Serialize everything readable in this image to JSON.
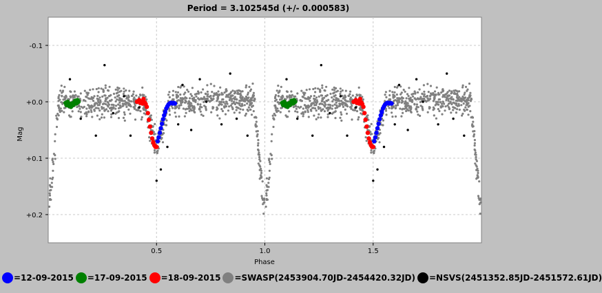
{
  "chart_data": {
    "type": "scatter",
    "title": "Period = 3.102545d (+/- 0.000583)",
    "xlabel": "Phase",
    "ylabel": "Mag",
    "xlim": [
      0.0,
      2.0
    ],
    "ylim": [
      0.25,
      -0.15
    ],
    "y_inverted": true,
    "grid": true,
    "x_ticks": [
      "0.5",
      "1.0",
      "1.5"
    ],
    "y_ticks": [
      "-0.1",
      "+0.0",
      "+0.1",
      "+0.2"
    ],
    "legend_position": "bottom",
    "series": [
      {
        "name": "=12-09-2015",
        "color": "#0000ff",
        "points": [
          [
            0.505,
            0.07
          ],
          [
            0.51,
            0.063
          ],
          [
            0.515,
            0.055
          ],
          [
            0.52,
            0.047
          ],
          [
            0.525,
            0.039
          ],
          [
            0.53,
            0.031
          ],
          [
            0.535,
            0.024
          ],
          [
            0.54,
            0.018
          ],
          [
            0.545,
            0.012
          ],
          [
            0.55,
            0.008
          ],
          [
            0.555,
            0.005
          ],
          [
            0.56,
            0.003
          ],
          [
            0.565,
            0.002
          ],
          [
            0.57,
            0.002
          ],
          [
            0.575,
            0.003
          ],
          [
            0.58,
            0.002
          ],
          [
            0.585,
            0.003
          ]
        ]
      },
      {
        "name": "=17-09-2015",
        "color": "#008000",
        "points": [
          [
            0.08,
            0.002
          ],
          [
            0.085,
            0.006
          ],
          [
            0.09,
            0.0
          ],
          [
            0.095,
            0.007
          ],
          [
            0.1,
            0.004
          ],
          [
            0.105,
            0.009
          ],
          [
            0.11,
            0.003
          ],
          [
            0.115,
            0.006
          ],
          [
            0.12,
            0.001
          ],
          [
            0.125,
            -0.002
          ],
          [
            0.13,
            0.003
          ],
          [
            0.135,
            -0.003
          ],
          [
            0.14,
            0.0
          ]
        ]
      },
      {
        "name": "=18-09-2015",
        "color": "#ff0000",
        "points": [
          [
            0.41,
            0.0
          ],
          [
            0.42,
            -0.003
          ],
          [
            0.425,
            0.002
          ],
          [
            0.43,
            0.0
          ],
          [
            0.435,
            0.003
          ],
          [
            0.44,
            -0.005
          ],
          [
            0.445,
            0.001
          ],
          [
            0.45,
            0.004
          ],
          [
            0.455,
            0.009
          ],
          [
            0.46,
            0.02
          ],
          [
            0.465,
            0.032
          ],
          [
            0.47,
            0.044
          ],
          [
            0.475,
            0.055
          ],
          [
            0.48,
            0.065
          ],
          [
            0.485,
            0.072
          ],
          [
            0.49,
            0.077
          ],
          [
            0.495,
            0.08
          ],
          [
            0.5,
            0.08
          ]
        ]
      },
      {
        "name": "=SWASP(2453904.70JD-2454420.32JD)",
        "color": "#808080",
        "generated": "baseline",
        "points": []
      },
      {
        "name": "=NSVS(2451352.85JD-2451572.61JD)",
        "color": "#000000",
        "points": [
          [
            0.1,
            -0.04
          ],
          [
            0.15,
            0.03
          ],
          [
            0.22,
            0.06
          ],
          [
            0.26,
            -0.065
          ],
          [
            0.3,
            0.02
          ],
          [
            0.35,
            -0.01
          ],
          [
            0.38,
            0.06
          ],
          [
            0.42,
            0.01
          ],
          [
            0.5,
            0.14
          ],
          [
            0.52,
            0.12
          ],
          [
            0.55,
            0.08
          ],
          [
            0.6,
            0.04
          ],
          [
            0.62,
            -0.03
          ],
          [
            0.66,
            0.05
          ],
          [
            0.7,
            -0.04
          ],
          [
            0.73,
            0.0
          ],
          [
            0.8,
            0.04
          ],
          [
            0.84,
            -0.05
          ],
          [
            0.87,
            0.03
          ],
          [
            0.92,
            0.06
          ]
        ]
      }
    ]
  },
  "legend": {
    "items": [
      {
        "label": "=12-09-2015",
        "color": "#0000ff"
      },
      {
        "label": "=17-09-2015",
        "color": "#008000"
      },
      {
        "label": "=18-09-2015",
        "color": "#ff0000"
      },
      {
        "label": "=SWASP(2453904.70JD-2454420.32JD)",
        "color": "#808080"
      },
      {
        "label": "=NSVS(2451352.85JD-2451572.61JD)",
        "color": "#000000"
      }
    ]
  }
}
